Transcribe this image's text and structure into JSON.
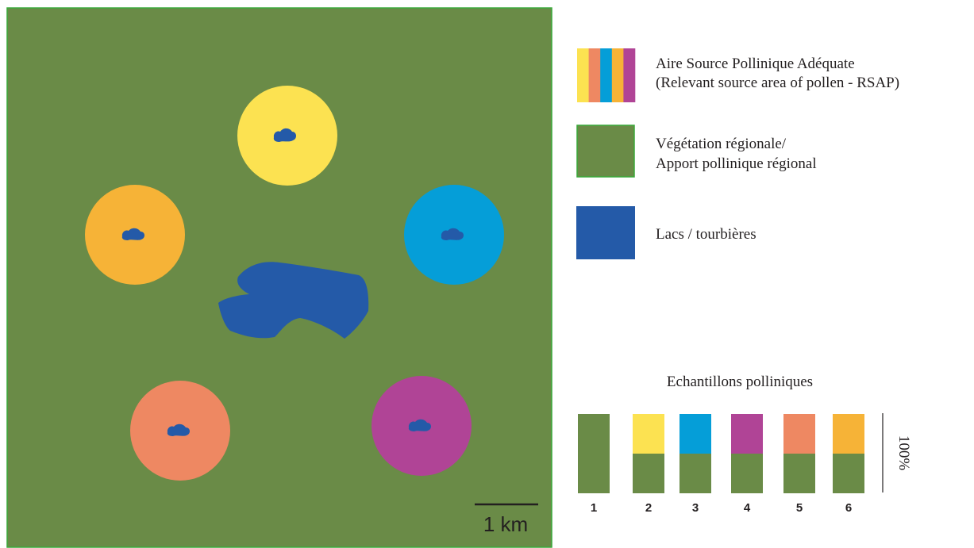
{
  "colors": {
    "region": "#6a8b47",
    "region_border": "#3aa93a",
    "lake": "#245aa8",
    "yellow": "#fce251",
    "salmon": "#ee8862",
    "blue": "#059ed8",
    "orange": "#f6b337",
    "magenta": "#b04496"
  },
  "map": {
    "scale_bar_label": "1 km",
    "sites": [
      {
        "id": "yellow",
        "color_key": "yellow"
      },
      {
        "id": "orange",
        "color_key": "orange"
      },
      {
        "id": "blue",
        "color_key": "blue"
      },
      {
        "id": "salmon",
        "color_key": "salmon"
      },
      {
        "id": "magenta",
        "color_key": "magenta"
      }
    ]
  },
  "legend": {
    "rsap": {
      "line1": "Aire Source Pollinique Adéquate",
      "line2": "(Relevant source area of pollen - RSAP)",
      "stripe_color_keys": [
        "yellow",
        "salmon",
        "blue",
        "orange",
        "magenta"
      ]
    },
    "regional": {
      "line1": "Végétation régionale/",
      "line2": "Apport pollinique régional"
    },
    "lakes": {
      "label": "Lacs / tourbières"
    }
  },
  "samples": {
    "title": "Echantillons polliniques",
    "axis_label": "100%",
    "bars": [
      {
        "label": "1",
        "regional_fraction": 1.0,
        "local_color_key": null
      },
      {
        "label": "2",
        "regional_fraction": 0.5,
        "local_color_key": "yellow"
      },
      {
        "label": "3",
        "regional_fraction": 0.5,
        "local_color_key": "blue"
      },
      {
        "label": "4",
        "regional_fraction": 0.5,
        "local_color_key": "magenta"
      },
      {
        "label": "5",
        "regional_fraction": 0.5,
        "local_color_key": "salmon"
      },
      {
        "label": "6",
        "regional_fraction": 0.5,
        "local_color_key": "orange"
      }
    ]
  }
}
